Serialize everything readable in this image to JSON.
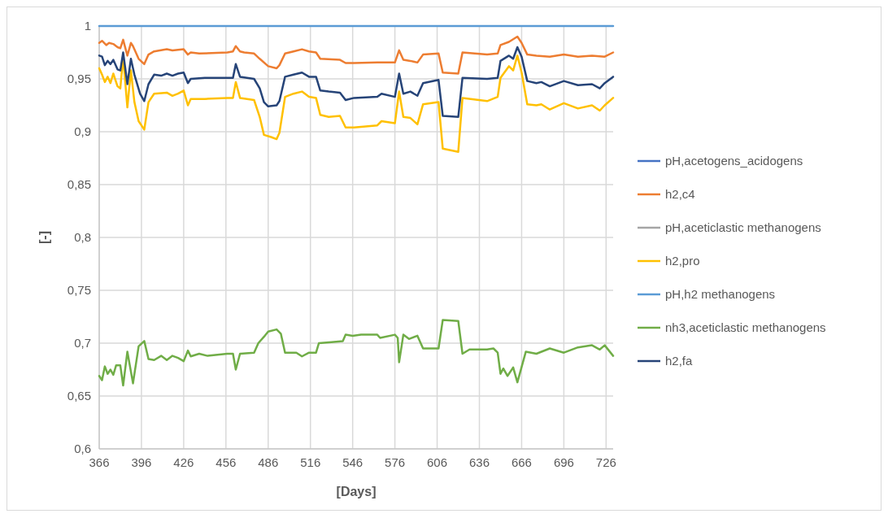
{
  "chart_data": {
    "type": "line",
    "xlabel": "[Days]",
    "ylabel": "[-]",
    "xlim": [
      366,
      731
    ],
    "xticks": [
      366,
      396,
      426,
      456,
      486,
      516,
      546,
      576,
      606,
      636,
      666,
      696,
      726
    ],
    "ylim": [
      0.6,
      1
    ],
    "yticks": [
      {
        "value": 0.6,
        "label": "0,6"
      },
      {
        "value": 0.65,
        "label": "0,65"
      },
      {
        "value": 0.7,
        "label": "0,7"
      },
      {
        "value": 0.75,
        "label": "0,75"
      },
      {
        "value": 0.8,
        "label": "0,8"
      },
      {
        "value": 0.85,
        "label": "0,85"
      },
      {
        "value": 0.9,
        "label": "0,9"
      },
      {
        "value": 0.95,
        "label": "0,95"
      },
      {
        "value": 1,
        "label": "1"
      }
    ],
    "grid": true,
    "legend": "right",
    "marker": "none",
    "line_style": "solid",
    "series": [
      {
        "name": "pH,acetogens_acidogens",
        "color": "#4472c4"
      },
      {
        "name": "h2,c4",
        "color": "#ed7d31",
        "x": [
          366,
          368,
          371,
          373,
          376,
          379,
          381,
          383,
          386,
          388.5,
          390,
          394,
          398,
          401,
          405,
          414,
          418,
          426,
          429,
          431,
          437,
          457,
          461,
          463,
          466,
          469,
          476,
          480,
          486,
          492,
          494,
          498,
          504,
          510,
          515,
          520,
          523,
          537,
          541,
          547,
          563.5,
          576,
          579,
          582,
          587,
          592,
          596,
          607,
          610,
          621,
          624,
          641.5,
          649,
          651,
          657,
          663,
          666,
          670,
          676.5,
          686,
          696,
          706,
          716,
          725,
          731
        ],
        "values": [
          0.984,
          0.986,
          0.982,
          0.984,
          0.983,
          0.98,
          0.979,
          0.987,
          0.972,
          0.984,
          0.981,
          0.969,
          0.964,
          0.973,
          0.976,
          0.978,
          0.977,
          0.978,
          0.973,
          0.975,
          0.974,
          0.975,
          0.976,
          0.981,
          0.976,
          0.975,
          0.974,
          0.969,
          0.962,
          0.96,
          0.963,
          0.974,
          0.976,
          0.978,
          0.976,
          0.975,
          0.969,
          0.968,
          0.965,
          0.965,
          0.9655,
          0.9655,
          0.977,
          0.968,
          0.967,
          0.9655,
          0.973,
          0.974,
          0.956,
          0.955,
          0.975,
          0.973,
          0.974,
          0.982,
          0.985,
          0.99,
          0.984,
          0.973,
          0.972,
          0.971,
          0.973,
          0.971,
          0.972,
          0.971,
          0.975
        ]
      },
      {
        "name": "pH,aceticlastic methanogens",
        "color": "#a5a5a5"
      },
      {
        "name": "h2,pro",
        "color": "#ffc000",
        "x": [
          366,
          368,
          370,
          372,
          374,
          376,
          379,
          381,
          383,
          386,
          388.5,
          391,
          394,
          398,
          401,
          405,
          414,
          418,
          422,
          426,
          429,
          431,
          441,
          457,
          461,
          463,
          466,
          476,
          480,
          483,
          488,
          492,
          494,
          498,
          504,
          510,
          515,
          520,
          523,
          529,
          537,
          541,
          547,
          563.5,
          566.5,
          576,
          579,
          582,
          587,
          592,
          596,
          607,
          610,
          621,
          624,
          641.5,
          649,
          651,
          657,
          660,
          663,
          666,
          670,
          676.5,
          680,
          686,
          696,
          706,
          716,
          721.5,
          725,
          731
        ],
        "values": [
          0.96,
          0.954,
          0.947,
          0.952,
          0.946,
          0.955,
          0.943,
          0.941,
          0.971,
          0.923,
          0.958,
          0.928,
          0.91,
          0.902,
          0.928,
          0.936,
          0.937,
          0.934,
          0.936,
          0.939,
          0.925,
          0.931,
          0.931,
          0.932,
          0.932,
          0.947,
          0.932,
          0.93,
          0.914,
          0.897,
          0.895,
          0.893,
          0.899,
          0.933,
          0.936,
          0.938,
          0.933,
          0.932,
          0.916,
          0.914,
          0.915,
          0.904,
          0.904,
          0.906,
          0.91,
          0.908,
          0.938,
          0.914,
          0.913,
          0.907,
          0.926,
          0.928,
          0.884,
          0.881,
          0.932,
          0.929,
          0.933,
          0.951,
          0.962,
          0.958,
          0.972,
          0.956,
          0.926,
          0.925,
          0.926,
          0.921,
          0.927,
          0.922,
          0.925,
          0.92,
          0.925,
          0.932
        ]
      },
      {
        "name": "pH,h2 methanogens",
        "color": "#5b9bd5",
        "x": [
          366,
          731
        ],
        "values": [
          1,
          1
        ]
      },
      {
        "name": "nh3,aceticlastic methanogens",
        "color": "#70ad47",
        "x": [
          366,
          368,
          370,
          372,
          374,
          376,
          378,
          381,
          383,
          386,
          390,
          394,
          398,
          401,
          405,
          410,
          414,
          418,
          422,
          426,
          429,
          431,
          437,
          443,
          457,
          461,
          463,
          466,
          476,
          479,
          483,
          486,
          492,
          495,
          498,
          506,
          510,
          515,
          520,
          522,
          531,
          539,
          541,
          546,
          552,
          563.5,
          565.5,
          576,
          578,
          579,
          582,
          586,
          592,
          596,
          607,
          610,
          621,
          624,
          629,
          641.5,
          646,
          649,
          651,
          653,
          656,
          660,
          663,
          669,
          676.5,
          686,
          696,
          706,
          716,
          721.5,
          725,
          731
        ],
        "values": [
          0.669,
          0.665,
          0.678,
          0.671,
          0.675,
          0.67,
          0.679,
          0.679,
          0.66,
          0.692,
          0.662,
          0.697,
          0.702,
          0.685,
          0.684,
          0.688,
          0.684,
          0.688,
          0.686,
          0.683,
          0.693,
          0.6875,
          0.69,
          0.688,
          0.69,
          0.69,
          0.675,
          0.69,
          0.691,
          0.7,
          0.706,
          0.711,
          0.713,
          0.709,
          0.691,
          0.691,
          0.6875,
          0.691,
          0.691,
          0.7,
          0.701,
          0.702,
          0.708,
          0.707,
          0.708,
          0.708,
          0.705,
          0.708,
          0.705,
          0.682,
          0.708,
          0.704,
          0.707,
          0.695,
          0.695,
          0.722,
          0.721,
          0.69,
          0.694,
          0.694,
          0.695,
          0.691,
          0.671,
          0.676,
          0.669,
          0.677,
          0.663,
          0.692,
          0.69,
          0.695,
          0.691,
          0.696,
          0.698,
          0.694,
          0.698,
          0.688
        ]
      },
      {
        "name": "h2,fa",
        "color": "#264478",
        "x": [
          366,
          368,
          370,
          372,
          374,
          376,
          379,
          381,
          383,
          386,
          388.5,
          391,
          395,
          398,
          401,
          405,
          410,
          414,
          418,
          422,
          426,
          429,
          431,
          441,
          457,
          461,
          463,
          466,
          476,
          480,
          483,
          486,
          492,
          494,
          498,
          504,
          510,
          515,
          520,
          523,
          529,
          537,
          541,
          547,
          563.5,
          566.5,
          576,
          579,
          582,
          587,
          592,
          596,
          607,
          610,
          621,
          624,
          641.5,
          649,
          651,
          657,
          660,
          663,
          666,
          670,
          676.5,
          680,
          686,
          696,
          706,
          716,
          721.5,
          725,
          731
        ],
        "values": [
          0.972,
          0.971,
          0.963,
          0.967,
          0.964,
          0.968,
          0.959,
          0.958,
          0.975,
          0.945,
          0.969,
          0.954,
          0.936,
          0.929,
          0.945,
          0.954,
          0.953,
          0.955,
          0.953,
          0.955,
          0.956,
          0.946,
          0.95,
          0.951,
          0.951,
          0.951,
          0.964,
          0.952,
          0.95,
          0.941,
          0.928,
          0.924,
          0.925,
          0.929,
          0.952,
          0.954,
          0.956,
          0.952,
          0.952,
          0.939,
          0.938,
          0.937,
          0.93,
          0.932,
          0.933,
          0.936,
          0.933,
          0.955,
          0.936,
          0.938,
          0.934,
          0.946,
          0.949,
          0.915,
          0.914,
          0.951,
          0.95,
          0.951,
          0.967,
          0.972,
          0.969,
          0.98,
          0.971,
          0.948,
          0.946,
          0.947,
          0.943,
          0.948,
          0.944,
          0.945,
          0.941,
          0.946,
          0.952
        ]
      }
    ]
  }
}
